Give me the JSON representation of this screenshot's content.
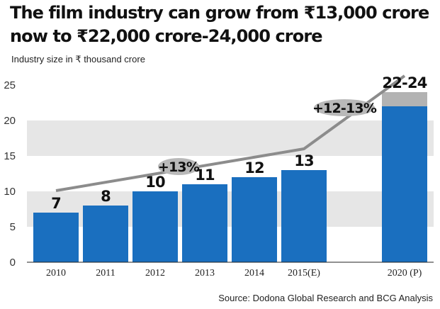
{
  "title": "The film industry can grow from ₹13,000 crore now to ₹22,000 crore-24,000 crore",
  "subtitle": "Industry size in ₹ thousand crore",
  "source": "Source: Dodona Global Research and BCG Analysis",
  "colors": {
    "bar": "#1a6fbf",
    "projection_extra": "#b3b3b3",
    "band": "#e6e6e6",
    "trend_line": "#8c8c8c",
    "growth_bubble": "#b9b9b9",
    "text": "#111111"
  },
  "chart_data": {
    "type": "bar",
    "categories": [
      "2010",
      "2011",
      "2012",
      "2013",
      "2014",
      "2015(E)",
      "2020 (P)"
    ],
    "values": [
      7,
      8,
      10,
      11,
      12,
      13,
      22
    ],
    "value_labels": [
      "7",
      "8",
      "10",
      "11",
      "12",
      "13",
      "22-24"
    ],
    "projection_range": {
      "category": "2020 (P)",
      "low": 22,
      "high": 24
    },
    "ylim": [
      0,
      25
    ],
    "yticks": [
      0,
      5,
      10,
      15,
      20,
      25
    ],
    "grid": "alternating horizontal bands",
    "trend_line": {
      "x": [
        "2010",
        "2015(E)",
        "2020 (P)"
      ],
      "y": [
        10.1,
        16,
        26.3
      ]
    },
    "annotations": [
      {
        "text": "+13%",
        "x_between": [
          "2012",
          "2013"
        ],
        "y": 13.5
      },
      {
        "text": "+12-13%",
        "x_between": [
          "2015(E)",
          "2020 (P)"
        ],
        "y": 21.8
      }
    ]
  }
}
